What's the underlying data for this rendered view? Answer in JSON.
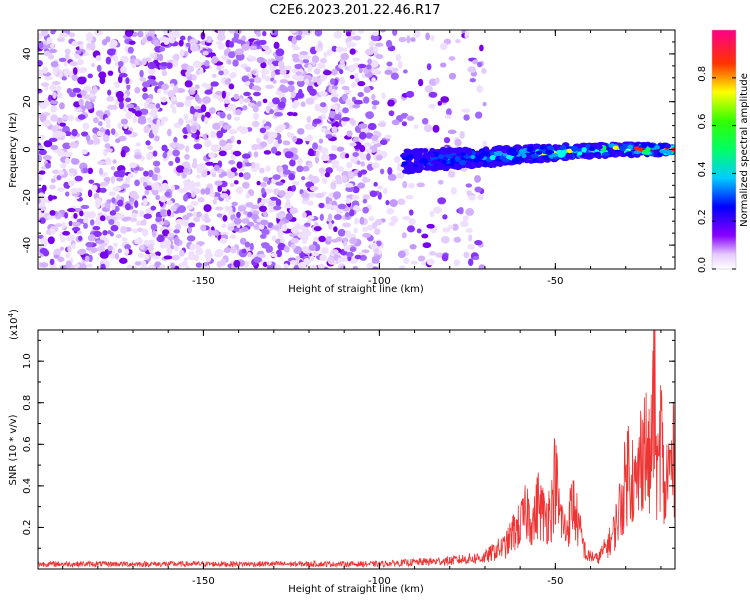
{
  "title": "C2E6.2023.201.22.46.R17",
  "chart_data": [
    {
      "type": "heatmap",
      "title": "C2E6.2023.201.22.46.R17",
      "xlabel": "Height of straight line (km)",
      "ylabel": "Frequency (Hz)",
      "xlim": [
        -197,
        -16
      ],
      "ylim": [
        -50,
        50
      ],
      "x_ticks": [
        -150,
        -100,
        -50
      ],
      "y_ticks": [
        -40,
        -20,
        0,
        20,
        40
      ],
      "grid": false,
      "description_ridge": {
        "x_start": -93,
        "x_end": -16,
        "freq_start": -5,
        "freq_end": 0
      },
      "colorbar": {
        "label": "Normalized spectral amplitude",
        "range": [
          0,
          1
        ],
        "ticks": [
          "0.0",
          "0.2",
          "0.4",
          "0.6",
          "0.8"
        ],
        "colors": [
          "#ffffff",
          "#7700ee",
          "#0000ff",
          "#00ffff",
          "#00ff00",
          "#ffff00",
          "#ff0000",
          "#ff0099"
        ]
      }
    },
    {
      "type": "line",
      "xlabel": "Height of straight line (km)",
      "ylabel": "SNR (10 * v/v)",
      "y_multiplier": "(x10",
      "y_multiplier_exp": "4",
      "y_multiplier_close": ")",
      "xlim": [
        -197,
        -16
      ],
      "ylim": [
        0,
        11500
      ],
      "x_ticks": [
        -150,
        -100,
        -50
      ],
      "y_ticks": [
        2000,
        4000,
        6000,
        8000,
        10000
      ],
      "y_tick_labels": [
        "0.2",
        "0.4",
        "0.6",
        "0.8",
        "1.0"
      ],
      "line_color": "#ee3333",
      "series": [
        {
          "x": [
            -197,
            -180,
            -160,
            -140,
            -120,
            -100,
            -90,
            -80,
            -75,
            -70,
            -67,
            -64,
            -62,
            -60,
            -58,
            -56,
            -55,
            -53,
            -51,
            -50,
            -49,
            -47,
            -45,
            -43,
            -41,
            -40,
            -38,
            -36,
            -34,
            -33,
            -31,
            -29,
            -27,
            -25,
            -23,
            -22,
            -21,
            -20,
            -19,
            -18,
            -17,
            -16
          ],
          "y": [
            300,
            300,
            300,
            300,
            300,
            300,
            400,
            500,
            600,
            700,
            1100,
            1400,
            2200,
            2600,
            3500,
            2800,
            4000,
            3100,
            3700,
            5800,
            3500,
            2200,
            4000,
            2200,
            700,
            800,
            600,
            1200,
            1800,
            2500,
            4200,
            6500,
            4600,
            8000,
            5800,
            11400,
            4900,
            8700,
            4000,
            6000,
            6000,
            6800
          ]
        }
      ]
    }
  ]
}
